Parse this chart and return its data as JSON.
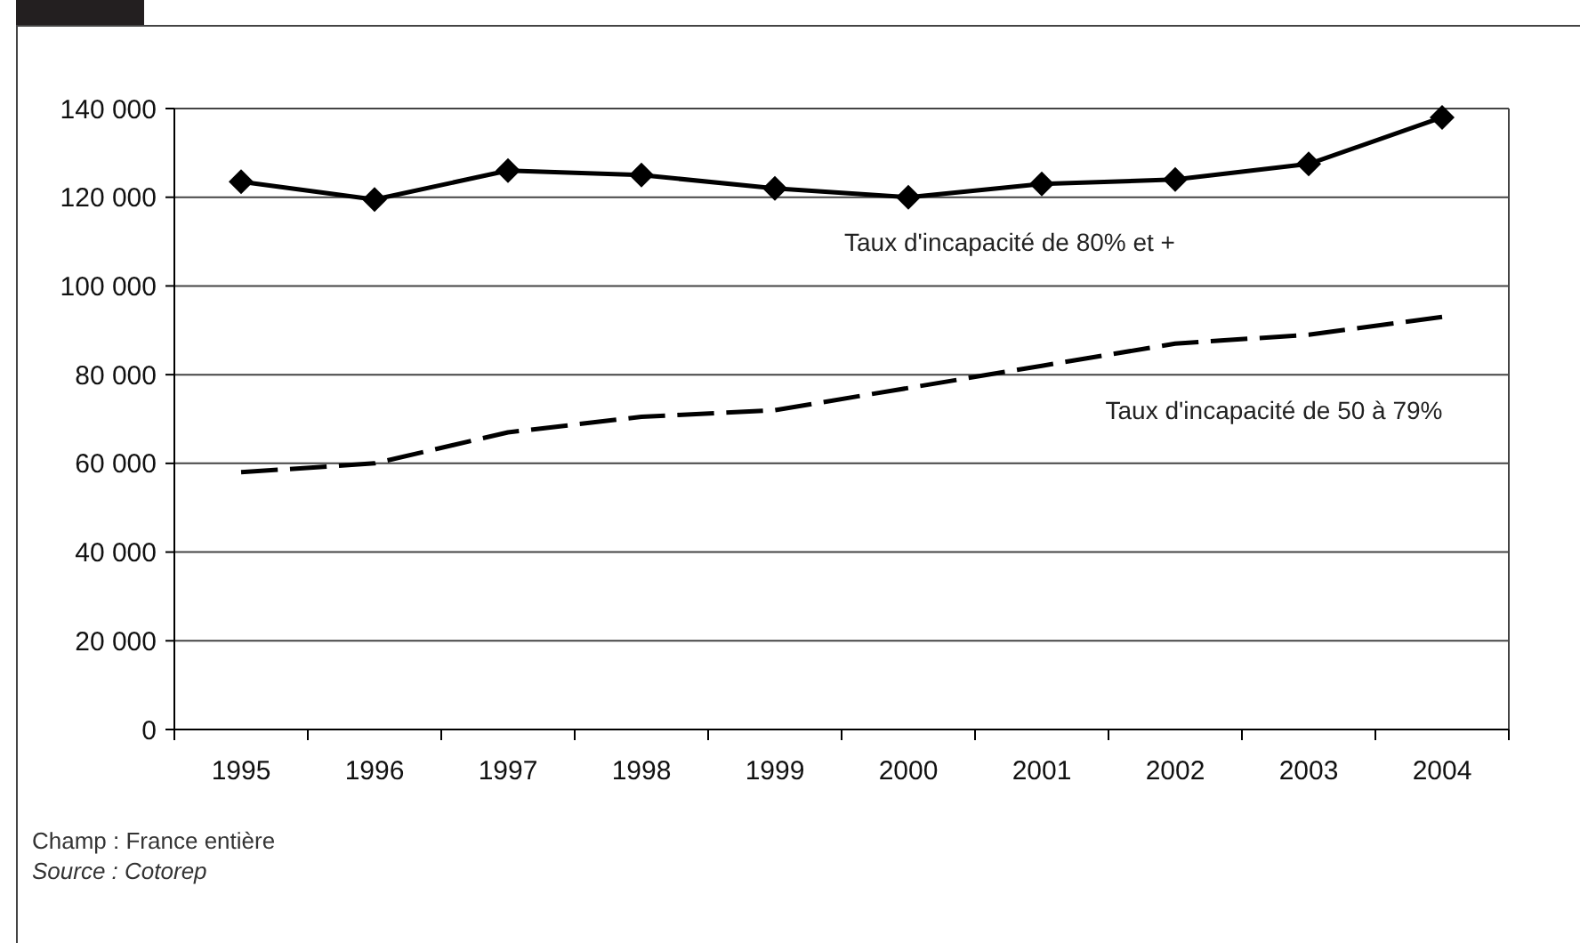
{
  "chart_data": {
    "type": "line",
    "categories": [
      "1995",
      "1996",
      "1997",
      "1998",
      "1999",
      "2000",
      "2001",
      "2002",
      "2003",
      "2004"
    ],
    "series": [
      {
        "name": "Taux d'incapacité de 80% et +",
        "color": "#000000",
        "marker": "diamond",
        "line_style": "solid",
        "values": [
          123500,
          119500,
          126000,
          125000,
          122000,
          120000,
          123000,
          124000,
          127500,
          138000
        ]
      },
      {
        "name": "Taux d'incapacité de 50 à 79%",
        "color": "#000000",
        "marker": "none",
        "line_style": "dashed",
        "values": [
          58000,
          60000,
          67000,
          70500,
          72000,
          77000,
          82000,
          87000,
          89000,
          93000
        ]
      }
    ],
    "ylim": [
      0,
      140000
    ],
    "yticks": [
      {
        "value": 0,
        "label": "0"
      },
      {
        "value": 20000,
        "label": "20 000"
      },
      {
        "value": 40000,
        "label": "40 000"
      },
      {
        "value": 60000,
        "label": "60 000"
      },
      {
        "value": 80000,
        "label": "80 000"
      },
      {
        "value": 100000,
        "label": "100 000"
      },
      {
        "value": 120000,
        "label": "120 000"
      },
      {
        "value": 140000,
        "label": "140 000"
      }
    ],
    "grid": "y",
    "annotations": [
      "Champ : France entière",
      "Source : Cotorep"
    ]
  }
}
